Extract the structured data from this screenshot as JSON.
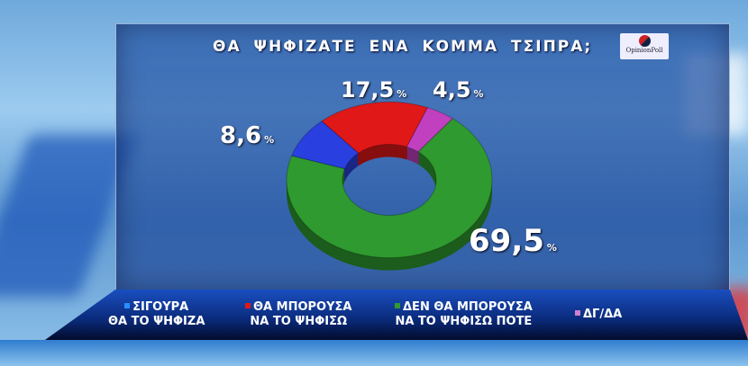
{
  "chart_data": {
    "type": "pie",
    "title": "ΘΑ ΨΗΦΙΖΑΤΕ ΕΝΑ ΚΟΜΜΑ ΤΣΙΠΡΑ;",
    "legend_position": "bottom",
    "slices": [
      {
        "label": "ΣΙΓΟΥΡΑ ΘΑ ΤΟ ΨΗΦΙΖΑ",
        "label_lines": [
          "ΣΙΓΟΥΡΑ",
          "ΘΑ ΤΟ ΨΗΦΙΖΑ"
        ],
        "value": 8.6,
        "value_text": "8,6",
        "color": "#2a3fe0"
      },
      {
        "label": "ΘΑ ΜΠΟΡΟΥΣΑ ΝΑ ΤΟ ΨΗΦΙΣΩ",
        "label_lines": [
          "ΘΑ  ΜΠΟΡΟΥΣΑ",
          "ΝΑ  ΤΟ  ΨΗΦΙΣΩ"
        ],
        "value": 17.5,
        "value_text": "17,5",
        "color": "#e01818"
      },
      {
        "label": "ΔΓ/ΔΑ",
        "label_lines": [
          "ΔΓ/ΔΑ",
          ""
        ],
        "value": 4.5,
        "value_text": "4,5",
        "color": "#c040c0"
      },
      {
        "label": "ΔΕΝ ΘΑ ΜΠΟΡΟΥΣΑ ΝΑ ΤΟ ΨΗΦΙΣΩ ΠΟΤΕ",
        "label_lines": [
          "ΔΕΝ ΘΑ ΜΠΟΡΟΥΣΑ",
          "ΝΑ ΤΟ ΨΗΦΙΣΩ ΠΟΤΕ"
        ],
        "value": 69.5,
        "value_text": "69,5",
        "color": "#2f9a2f"
      }
    ],
    "unit": "%"
  },
  "logo_text": "OpinionPoll"
}
